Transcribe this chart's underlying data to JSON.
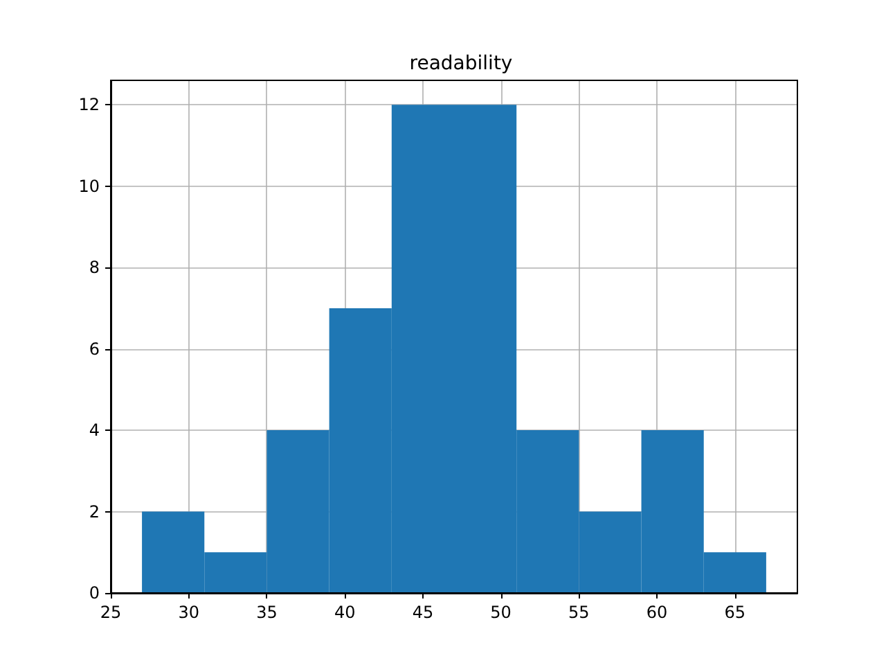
{
  "chart_data": {
    "type": "histogram",
    "title": "readability",
    "bins": [
      27,
      31,
      35,
      39,
      43,
      47,
      51,
      55,
      59,
      63,
      67
    ],
    "values": [
      2,
      1,
      4,
      7,
      12,
      12,
      4,
      2,
      4,
      1
    ],
    "color": "#1f77b4",
    "xlim": [
      25,
      69
    ],
    "xticks": [
      25,
      30,
      35,
      40,
      45,
      50,
      55,
      60,
      65
    ],
    "ylim": [
      0,
      12.6
    ],
    "yticks": [
      0,
      2,
      4,
      6,
      8,
      10,
      12
    ],
    "grid": true
  }
}
